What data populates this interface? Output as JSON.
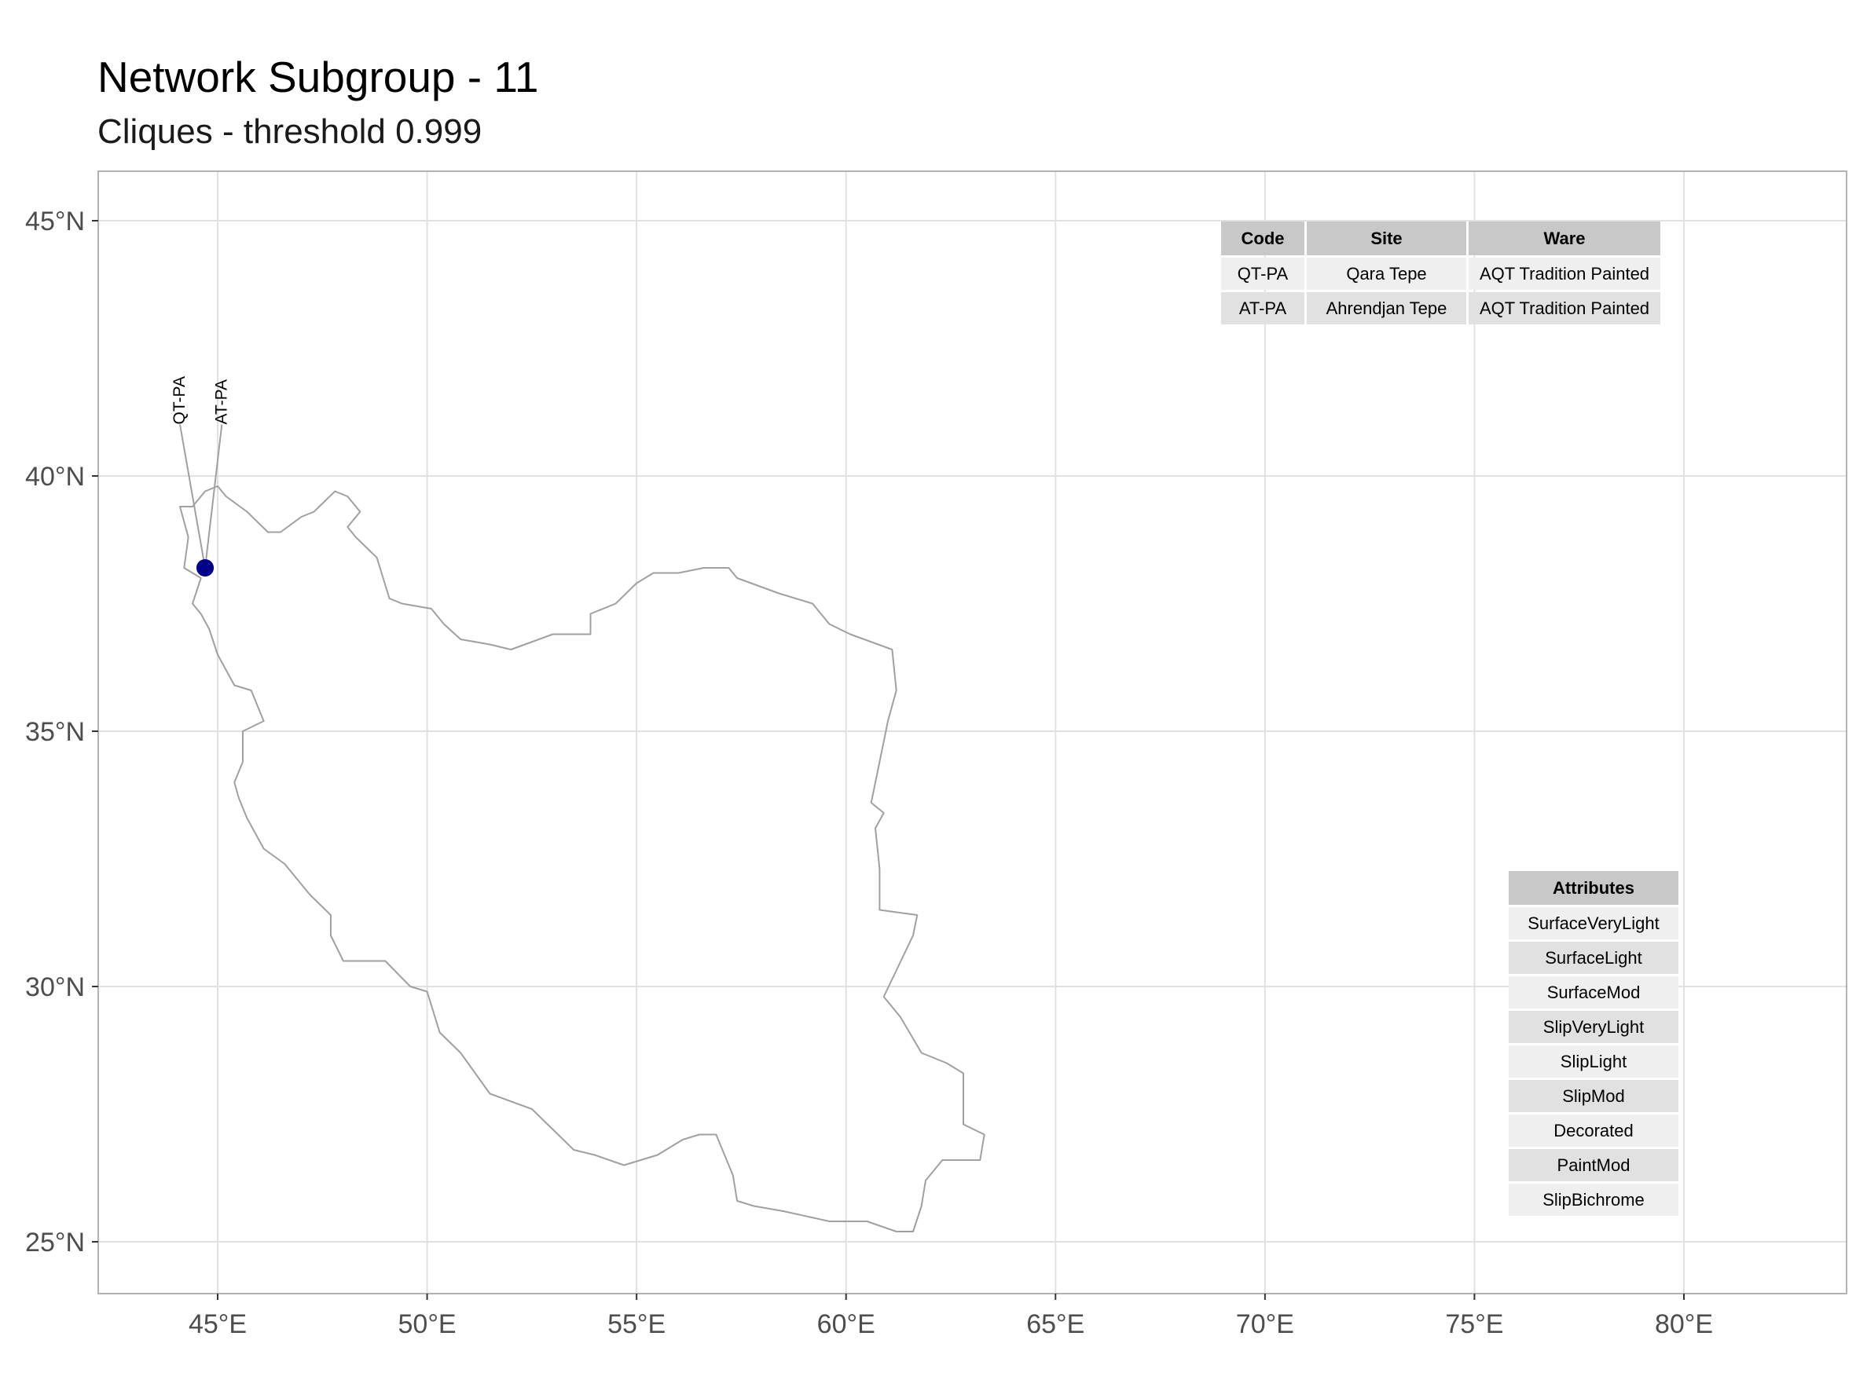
{
  "title": "Network Subgroup - 11",
  "subtitle": "Cliques - threshold 0.999",
  "map": {
    "lon_range": [
      42.2,
      84.4
    ],
    "lat_range": [
      24.0,
      46.0
    ],
    "lon_ticks": [
      {
        "value": 45,
        "label": "45°E"
      },
      {
        "value": 50,
        "label": "50°E"
      },
      {
        "value": 55,
        "label": "55°E"
      },
      {
        "value": 60,
        "label": "60°E"
      },
      {
        "value": 65,
        "label": "65°E"
      },
      {
        "value": 70,
        "label": "70°E"
      },
      {
        "value": 75,
        "label": "75°E"
      },
      {
        "value": 80,
        "label": "80°E"
      }
    ],
    "lat_ticks": [
      {
        "value": 45,
        "label": "45°N"
      },
      {
        "value": 40,
        "label": "40°N"
      },
      {
        "value": 35,
        "label": "35°N"
      },
      {
        "value": 30,
        "label": "30°N"
      },
      {
        "value": 25,
        "label": "25°N"
      }
    ],
    "colors": {
      "grid": "#e1e1e1",
      "border": "#a0a0a0",
      "point": "#00008b",
      "frame": "#b3b3b3"
    },
    "country_outline": [
      [
        44.1,
        39.4
      ],
      [
        44.4,
        39.4
      ],
      [
        44.7,
        39.7
      ],
      [
        45.0,
        39.8
      ],
      [
        45.2,
        39.6
      ],
      [
        45.7,
        39.3
      ],
      [
        46.2,
        38.9
      ],
      [
        46.5,
        38.9
      ],
      [
        47.0,
        39.2
      ],
      [
        47.3,
        39.3
      ],
      [
        47.8,
        39.7
      ],
      [
        48.1,
        39.6
      ],
      [
        48.4,
        39.3
      ],
      [
        48.1,
        39.0
      ],
      [
        48.3,
        38.8
      ],
      [
        48.8,
        38.4
      ],
      [
        49.1,
        37.6
      ],
      [
        49.4,
        37.5
      ],
      [
        50.1,
        37.4
      ],
      [
        50.4,
        37.1
      ],
      [
        50.8,
        36.8
      ],
      [
        51.5,
        36.7
      ],
      [
        52.0,
        36.6
      ],
      [
        53.0,
        36.9
      ],
      [
        53.9,
        36.9
      ],
      [
        53.9,
        37.3
      ],
      [
        54.5,
        37.5
      ],
      [
        55.0,
        37.9
      ],
      [
        55.4,
        38.1
      ],
      [
        56.0,
        38.1
      ],
      [
        56.6,
        38.2
      ],
      [
        57.2,
        38.2
      ],
      [
        57.4,
        38.0
      ],
      [
        58.4,
        37.7
      ],
      [
        59.2,
        37.5
      ],
      [
        59.6,
        37.1
      ],
      [
        60.1,
        36.9
      ],
      [
        61.1,
        36.6
      ],
      [
        61.2,
        35.8
      ],
      [
        61.0,
        35.2
      ],
      [
        60.8,
        34.4
      ],
      [
        60.6,
        33.6
      ],
      [
        60.9,
        33.4
      ],
      [
        60.7,
        33.1
      ],
      [
        60.8,
        32.3
      ],
      [
        60.8,
        31.5
      ],
      [
        61.7,
        31.4
      ],
      [
        61.6,
        31.0
      ],
      [
        60.9,
        29.8
      ],
      [
        61.3,
        29.4
      ],
      [
        61.8,
        28.7
      ],
      [
        62.4,
        28.5
      ],
      [
        62.8,
        28.3
      ],
      [
        62.8,
        27.3
      ],
      [
        63.3,
        27.1
      ],
      [
        63.2,
        26.6
      ],
      [
        62.3,
        26.6
      ],
      [
        61.9,
        26.2
      ],
      [
        61.8,
        25.7
      ],
      [
        61.6,
        25.2
      ],
      [
        61.2,
        25.2
      ],
      [
        60.5,
        25.4
      ],
      [
        59.6,
        25.4
      ],
      [
        58.5,
        25.6
      ],
      [
        57.8,
        25.7
      ],
      [
        57.4,
        25.8
      ],
      [
        57.3,
        26.3
      ],
      [
        56.9,
        27.1
      ],
      [
        56.5,
        27.1
      ],
      [
        56.1,
        27.0
      ],
      [
        55.5,
        26.7
      ],
      [
        54.7,
        26.5
      ],
      [
        54.0,
        26.7
      ],
      [
        53.5,
        26.8
      ],
      [
        52.5,
        27.6
      ],
      [
        51.5,
        27.9
      ],
      [
        50.8,
        28.7
      ],
      [
        50.3,
        29.1
      ],
      [
        50.0,
        29.9
      ],
      [
        49.6,
        30.0
      ],
      [
        49.0,
        30.5
      ],
      [
        48.5,
        30.5
      ],
      [
        48.0,
        30.5
      ],
      [
        47.7,
        31.0
      ],
      [
        47.7,
        31.4
      ],
      [
        47.2,
        31.8
      ],
      [
        46.6,
        32.4
      ],
      [
        46.1,
        32.7
      ],
      [
        45.7,
        33.3
      ],
      [
        45.5,
        33.7
      ],
      [
        45.4,
        34.0
      ],
      [
        45.6,
        34.4
      ],
      [
        45.6,
        35.0
      ],
      [
        46.1,
        35.2
      ],
      [
        45.8,
        35.8
      ],
      [
        45.4,
        35.9
      ],
      [
        45.0,
        36.5
      ],
      [
        44.8,
        37.0
      ],
      [
        44.6,
        37.3
      ],
      [
        44.4,
        37.5
      ],
      [
        44.6,
        38.0
      ],
      [
        44.2,
        38.2
      ],
      [
        44.3,
        38.8
      ],
      [
        44.1,
        39.4
      ]
    ],
    "sites": [
      {
        "code": "QT-PA",
        "lon": 44.7,
        "lat": 38.2,
        "label_lon": 44.1,
        "label_lat": 41.1
      },
      {
        "code": "AT-PA",
        "lon": 44.7,
        "lat": 38.2,
        "label_lon": 45.1,
        "label_lat": 41.1
      }
    ]
  },
  "site_table": {
    "headers": [
      "Code",
      "Site",
      "Ware"
    ],
    "rows": [
      [
        "QT-PA",
        "Qara Tepe",
        "AQT Tradition Painted"
      ],
      [
        "AT-PA",
        "Ahrendjan Tepe",
        "AQT Tradition Painted"
      ]
    ]
  },
  "attributes_table": {
    "header": "Attributes",
    "rows": [
      "SurfaceVeryLight",
      "SurfaceLight",
      "SurfaceMod",
      "SlipVeryLight",
      "SlipLight",
      "SlipMod",
      "Decorated",
      "PaintMod",
      "SlipBichrome"
    ]
  }
}
